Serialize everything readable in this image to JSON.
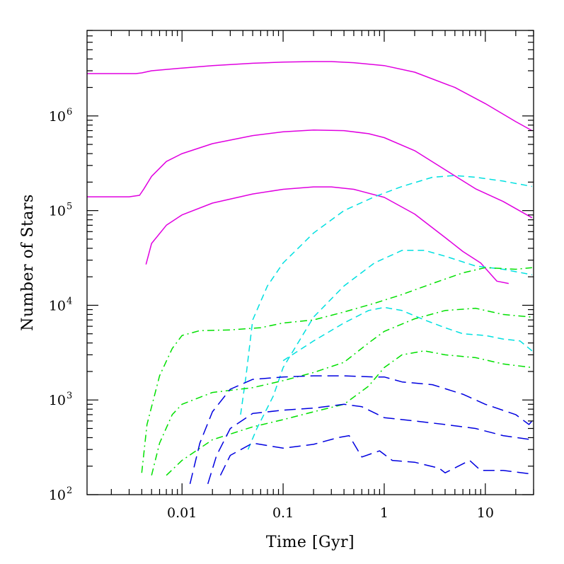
{
  "chart_data": {
    "type": "line",
    "xlabel": "Time [Gyr]",
    "ylabel": "Number of Stars",
    "x_scale": "log",
    "y_scale": "log",
    "xlim": [
      0.00115,
      30
    ],
    "ylim": [
      100,
      8000000
    ],
    "x_ticks": [
      {
        "value": 0.01,
        "label": "0.01"
      },
      {
        "value": 0.1,
        "label": "0.1"
      },
      {
        "value": 1,
        "label": "1"
      },
      {
        "value": 10,
        "label": "10"
      }
    ],
    "y_ticks": [
      {
        "value": 100,
        "base": "10",
        "exp": "2"
      },
      {
        "value": 1000,
        "base": "10",
        "exp": "3"
      },
      {
        "value": 10000,
        "base": "10",
        "exp": "4"
      },
      {
        "value": 100000,
        "base": "10",
        "exp": "5"
      },
      {
        "value": 1000000,
        "base": "10",
        "exp": "6"
      }
    ],
    "grid": false,
    "legend": "none",
    "series": [
      {
        "color": "#e000e0",
        "style": "solid",
        "points": [
          [
            0.00115,
            2800000
          ],
          [
            0.002,
            2800000
          ],
          [
            0.0035,
            2800000
          ],
          [
            0.004,
            2850000
          ],
          [
            0.005,
            3000000
          ],
          [
            0.01,
            3200000
          ],
          [
            0.02,
            3400000
          ],
          [
            0.05,
            3600000
          ],
          [
            0.1,
            3700000
          ],
          [
            0.2,
            3750000
          ],
          [
            0.3,
            3750000
          ],
          [
            0.5,
            3650000
          ],
          [
            1,
            3400000
          ],
          [
            2,
            2900000
          ],
          [
            5,
            2000000
          ],
          [
            10,
            1350000
          ],
          [
            20,
            870000
          ],
          [
            29,
            700000
          ]
        ]
      },
      {
        "color": "#e000e0",
        "style": "solid",
        "points": [
          [
            0.00115,
            140000
          ],
          [
            0.003,
            140000
          ],
          [
            0.0038,
            145000
          ],
          [
            0.0042,
            170000
          ],
          [
            0.005,
            230000
          ],
          [
            0.007,
            330000
          ],
          [
            0.01,
            400000
          ],
          [
            0.02,
            510000
          ],
          [
            0.05,
            620000
          ],
          [
            0.1,
            680000
          ],
          [
            0.2,
            710000
          ],
          [
            0.4,
            700000
          ],
          [
            0.7,
            650000
          ],
          [
            1,
            590000
          ],
          [
            2,
            430000
          ],
          [
            4,
            270000
          ],
          [
            8,
            170000
          ],
          [
            15,
            125000
          ],
          [
            29,
            84000
          ]
        ]
      },
      {
        "color": "#e000e0",
        "style": "solid",
        "points": [
          [
            0.0044,
            27000
          ],
          [
            0.005,
            45000
          ],
          [
            0.007,
            70000
          ],
          [
            0.01,
            90000
          ],
          [
            0.02,
            120000
          ],
          [
            0.05,
            150000
          ],
          [
            0.1,
            168000
          ],
          [
            0.2,
            178000
          ],
          [
            0.3,
            178000
          ],
          [
            0.5,
            168000
          ],
          [
            1,
            138000
          ],
          [
            2,
            92000
          ],
          [
            4,
            52000
          ],
          [
            6,
            37000
          ],
          [
            9,
            28000
          ],
          [
            13,
            18000
          ],
          [
            17,
            17000
          ]
        ]
      },
      {
        "color": "#00e0e0",
        "style": "dash",
        "points": [
          [
            0.038,
            700
          ],
          [
            0.043,
            1800
          ],
          [
            0.05,
            7000
          ],
          [
            0.07,
            16000
          ],
          [
            0.1,
            28000
          ],
          [
            0.2,
            58000
          ],
          [
            0.4,
            100000
          ],
          [
            0.8,
            140000
          ],
          [
            1.5,
            180000
          ],
          [
            3,
            225000
          ],
          [
            5,
            235000
          ],
          [
            8,
            225000
          ],
          [
            15,
            205000
          ],
          [
            29,
            180000
          ]
        ]
      },
      {
        "color": "#00e0e0",
        "style": "dash",
        "points": [
          [
            0.045,
            300
          ],
          [
            0.055,
            500
          ],
          [
            0.08,
            1100
          ],
          [
            0.1,
            2200
          ],
          [
            0.2,
            7500
          ],
          [
            0.4,
            16000
          ],
          [
            0.8,
            28000
          ],
          [
            1.5,
            38000
          ],
          [
            2.5,
            38000
          ],
          [
            4,
            33000
          ],
          [
            8,
            26000
          ],
          [
            15,
            24000
          ],
          [
            29,
            21000
          ]
        ]
      },
      {
        "color": "#00e0e0",
        "style": "dash",
        "points": [
          [
            0.1,
            2600
          ],
          [
            0.2,
            4200
          ],
          [
            0.4,
            6500
          ],
          [
            0.7,
            8800
          ],
          [
            1,
            9500
          ],
          [
            1.5,
            8800
          ],
          [
            2.5,
            7000
          ],
          [
            4,
            5800
          ],
          [
            6,
            5000
          ],
          [
            10,
            4800
          ],
          [
            15,
            4400
          ],
          [
            22,
            4200
          ],
          [
            29,
            3300
          ]
        ]
      },
      {
        "color": "#00e000",
        "style": "dashdot",
        "points": [
          [
            0.004,
            170
          ],
          [
            0.0045,
            550
          ],
          [
            0.006,
            1800
          ],
          [
            0.008,
            3500
          ],
          [
            0.01,
            4800
          ],
          [
            0.015,
            5400
          ],
          [
            0.03,
            5500
          ],
          [
            0.06,
            5800
          ],
          [
            0.1,
            6500
          ],
          [
            0.2,
            7000
          ],
          [
            0.4,
            8500
          ],
          [
            0.8,
            10500
          ],
          [
            1.5,
            13000
          ],
          [
            3,
            17000
          ],
          [
            6,
            22000
          ],
          [
            10,
            25000
          ],
          [
            20,
            24000
          ],
          [
            29,
            25000
          ]
        ]
      },
      {
        "color": "#00e000",
        "style": "dashdot",
        "points": [
          [
            0.005,
            160
          ],
          [
            0.006,
            350
          ],
          [
            0.008,
            700
          ],
          [
            0.01,
            900
          ],
          [
            0.02,
            1200
          ],
          [
            0.05,
            1350
          ],
          [
            0.1,
            1600
          ],
          [
            0.2,
            1950
          ],
          [
            0.4,
            2500
          ],
          [
            0.7,
            4000
          ],
          [
            1,
            5300
          ],
          [
            2,
            7200
          ],
          [
            4,
            8800
          ],
          [
            8,
            9300
          ],
          [
            15,
            8000
          ],
          [
            29,
            7500
          ]
        ]
      },
      {
        "color": "#00e000",
        "style": "dashdot",
        "points": [
          [
            0.007,
            160
          ],
          [
            0.01,
            230
          ],
          [
            0.02,
            380
          ],
          [
            0.05,
            520
          ],
          [
            0.1,
            620
          ],
          [
            0.2,
            750
          ],
          [
            0.4,
            900
          ],
          [
            0.7,
            1400
          ],
          [
            1,
            2200
          ],
          [
            1.5,
            3000
          ],
          [
            2.5,
            3300
          ],
          [
            4,
            3000
          ],
          [
            8,
            2800
          ],
          [
            15,
            2400
          ],
          [
            29,
            2200
          ]
        ]
      },
      {
        "color": "#0000e0",
        "style": "longdash",
        "points": [
          [
            0.012,
            130
          ],
          [
            0.015,
            350
          ],
          [
            0.02,
            750
          ],
          [
            0.03,
            1300
          ],
          [
            0.05,
            1650
          ],
          [
            0.1,
            1750
          ],
          [
            0.2,
            1800
          ],
          [
            0.4,
            1800
          ],
          [
            0.8,
            1750
          ],
          [
            1,
            1750
          ],
          [
            1.5,
            1550
          ],
          [
            3,
            1450
          ],
          [
            6,
            1150
          ],
          [
            10,
            900
          ],
          [
            20,
            700
          ],
          [
            27,
            550
          ],
          [
            29,
            600
          ]
        ]
      },
      {
        "color": "#0000e0",
        "style": "longdash",
        "points": [
          [
            0.018,
            130
          ],
          [
            0.022,
            260
          ],
          [
            0.03,
            500
          ],
          [
            0.05,
            720
          ],
          [
            0.1,
            780
          ],
          [
            0.2,
            820
          ],
          [
            0.4,
            900
          ],
          [
            0.6,
            850
          ],
          [
            1,
            650
          ],
          [
            2,
            600
          ],
          [
            4,
            550
          ],
          [
            8,
            500
          ],
          [
            15,
            420
          ],
          [
            29,
            380
          ]
        ]
      },
      {
        "color": "#0000e0",
        "style": "longdash",
        "points": [
          [
            0.024,
            160
          ],
          [
            0.03,
            260
          ],
          [
            0.05,
            350
          ],
          [
            0.1,
            310
          ],
          [
            0.2,
            340
          ],
          [
            0.35,
            400
          ],
          [
            0.45,
            420
          ],
          [
            0.6,
            250
          ],
          [
            0.9,
            290
          ],
          [
            1.2,
            230
          ],
          [
            2,
            220
          ],
          [
            3.5,
            190
          ],
          [
            4,
            170
          ],
          [
            7,
            230
          ],
          [
            9,
            180
          ],
          [
            15,
            180
          ],
          [
            29,
            165
          ]
        ]
      }
    ]
  }
}
